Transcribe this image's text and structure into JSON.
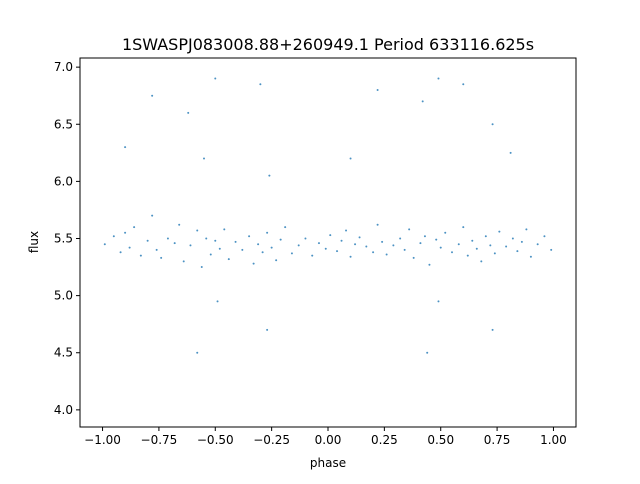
{
  "chart_data": {
    "type": "scatter",
    "title": "1SWASPJ083008.88+260949.1 Period 633116.625s",
    "xlabel": "phase",
    "ylabel": "flux",
    "xlim": [
      -1.1,
      1.1
    ],
    "ylim": [
      3.85,
      7.08
    ],
    "xticks": [
      -1.0,
      -0.75,
      -0.5,
      -0.25,
      0.0,
      0.25,
      0.5,
      0.75,
      1.0
    ],
    "xtick_labels": [
      "−1.00",
      "−0.75",
      "−0.50",
      "−0.25",
      "0.00",
      "0.25",
      "0.50",
      "0.75",
      "1.00"
    ],
    "yticks": [
      4.0,
      4.5,
      5.0,
      5.5,
      6.0,
      6.5,
      7.0
    ],
    "ytick_labels": [
      "4.0",
      "4.5",
      "5.0",
      "5.5",
      "6.0",
      "6.5",
      "7.0"
    ],
    "grid": false,
    "legend": "none",
    "marker_color": "#1f77b4",
    "x": [
      -0.99,
      -0.95,
      -0.92,
      -0.9,
      -0.88,
      -0.86,
      -0.83,
      -0.8,
      -0.78,
      -0.76,
      -0.74,
      -0.71,
      -0.68,
      -0.66,
      -0.64,
      -0.61,
      -0.58,
      -0.56,
      -0.54,
      -0.52,
      -0.5,
      -0.48,
      -0.46,
      -0.44,
      -0.41,
      -0.38,
      -0.35,
      -0.33,
      -0.31,
      -0.29,
      -0.27,
      -0.25,
      -0.23,
      -0.21,
      -0.19,
      -0.16,
      -0.13,
      -0.1,
      -0.07,
      -0.04,
      -0.01,
      0.01,
      0.04,
      0.06,
      0.08,
      0.1,
      0.12,
      0.14,
      0.17,
      0.2,
      0.22,
      0.24,
      0.26,
      0.29,
      0.32,
      0.34,
      0.36,
      0.38,
      0.41,
      0.43,
      0.45,
      0.48,
      0.5,
      0.52,
      0.55,
      0.58,
      0.6,
      0.62,
      0.64,
      0.66,
      0.68,
      0.7,
      0.72,
      0.74,
      0.76,
      0.79,
      0.82,
      0.84,
      0.86,
      0.88,
      0.9,
      0.93,
      0.96,
      0.99,
      -0.9,
      -0.78,
      -0.62,
      -0.55,
      -0.5,
      -0.3,
      -0.26,
      0.1,
      0.22,
      0.42,
      0.49,
      0.6,
      0.73,
      0.81,
      -0.58,
      0.44,
      -0.27,
      0.73,
      -0.49,
      0.49
    ],
    "y": [
      5.45,
      5.52,
      5.38,
      5.55,
      5.42,
      5.6,
      5.35,
      5.48,
      5.7,
      5.4,
      5.33,
      5.5,
      5.46,
      5.62,
      5.3,
      5.44,
      5.57,
      5.25,
      5.5,
      5.36,
      5.48,
      5.41,
      5.58,
      5.32,
      5.47,
      5.4,
      5.52,
      5.28,
      5.45,
      5.38,
      5.55,
      5.42,
      5.31,
      5.49,
      5.6,
      5.37,
      5.44,
      5.5,
      5.35,
      5.46,
      5.41,
      5.53,
      5.39,
      5.48,
      5.57,
      5.34,
      5.45,
      5.51,
      5.43,
      5.38,
      5.62,
      5.47,
      5.36,
      5.44,
      5.5,
      5.4,
      5.58,
      5.33,
      5.46,
      5.52,
      5.27,
      5.49,
      5.42,
      5.55,
      5.38,
      5.45,
      5.6,
      5.35,
      5.48,
      5.41,
      5.3,
      5.52,
      5.44,
      5.37,
      5.56,
      5.43,
      5.5,
      5.39,
      5.47,
      5.58,
      5.34,
      5.45,
      5.52,
      5.4,
      6.3,
      6.75,
      6.6,
      6.2,
      6.9,
      6.85,
      6.05,
      6.2,
      6.8,
      6.7,
      6.9,
      6.85,
      6.5,
      6.25,
      4.5,
      4.5,
      4.7,
      4.7,
      4.95,
      4.95
    ]
  }
}
